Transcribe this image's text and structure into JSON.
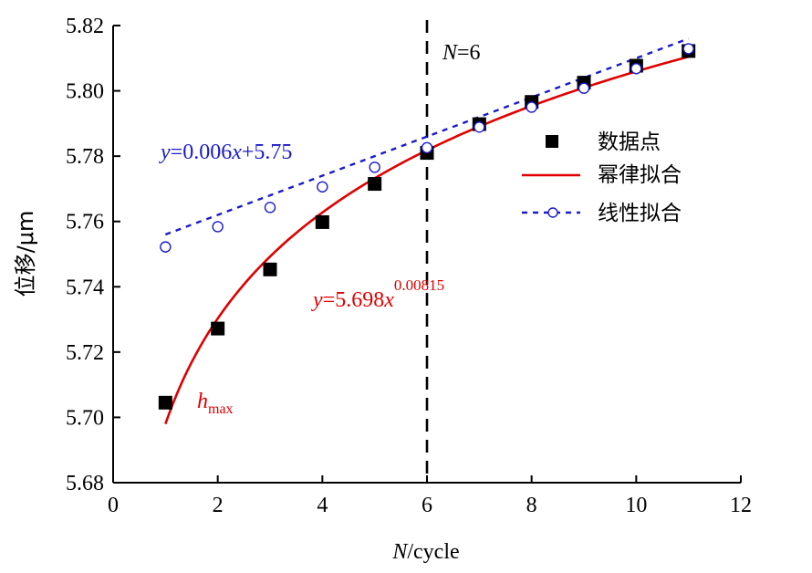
{
  "chart_data": {
    "type": "scatter",
    "xlabel": {
      "italic": "N",
      "rest": "/cycle"
    },
    "ylabel": "位移/μm",
    "xlim": [
      0,
      12
    ],
    "ylim": [
      5.68,
      5.82
    ],
    "xticks": [
      "0",
      "2",
      "4",
      "6",
      "8",
      "10",
      "12"
    ],
    "yticks": [
      "5.68",
      "5.70",
      "5.72",
      "5.74",
      "5.76",
      "5.78",
      "5.80",
      "5.82"
    ],
    "grid": false,
    "legend_position": "right",
    "series": [
      {
        "name": "数据点",
        "kind": "points",
        "color": "#000000",
        "x": [
          1,
          2,
          3,
          4,
          5,
          6,
          7,
          8,
          9,
          10,
          11
        ],
        "y": [
          5.7045,
          5.7272,
          5.7453,
          5.7598,
          5.7715,
          5.781,
          5.7898,
          5.7966,
          5.8025,
          5.8077,
          5.8122
        ]
      },
      {
        "name": "幂律拟合",
        "kind": "power_fit",
        "color": "#e00000",
        "a": 5.698,
        "b": 0.00815,
        "x_range": [
          1,
          11
        ]
      },
      {
        "name": "线性拟合",
        "kind": "linear_fit",
        "color": "#1a1acc",
        "slope": 0.006,
        "intercept": 5.75,
        "x": [
          1,
          2,
          3,
          4,
          5,
          6,
          7,
          8,
          9,
          10,
          11
        ],
        "y": [
          5.7522,
          5.7584,
          5.7643,
          5.7706,
          5.7766,
          5.7826,
          5.7889,
          5.795,
          5.8008,
          5.8068,
          5.8129
        ]
      }
    ],
    "vline": {
      "x": 6,
      "label_italic": "N",
      "label_rest": "=6"
    },
    "annotations": {
      "linear_eq": {
        "pre": "y",
        "mid": "=0.006",
        "x": "x",
        "post": "+5.75"
      },
      "power_eq": {
        "pre": "y",
        "mid": "=5.698",
        "x": "x",
        "exp": "0.00815"
      },
      "hmax": {
        "base": "h",
        "sub": "max"
      }
    }
  }
}
